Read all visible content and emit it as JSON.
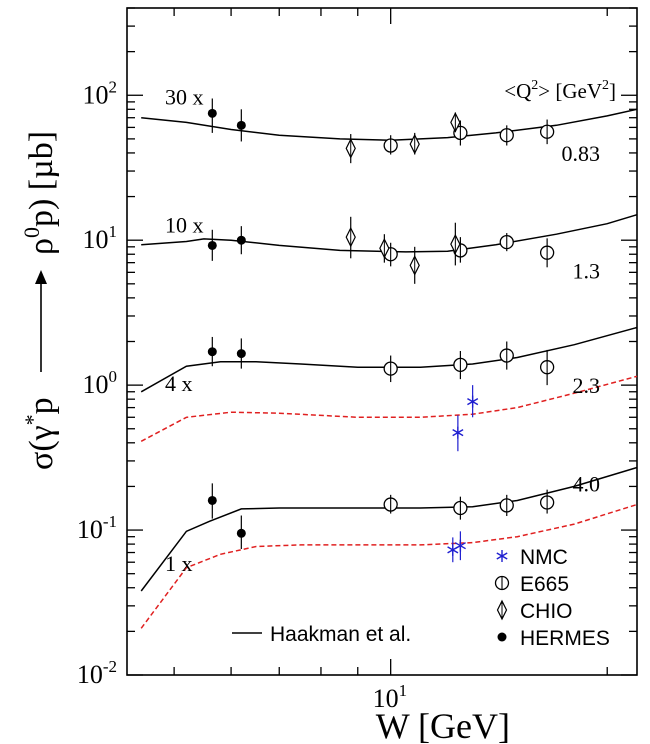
{
  "chart_data": {
    "type": "scatter",
    "title": "",
    "xlabel": "W [GeV]",
    "ylabel": {
      "prefix": "σ(γ",
      "star": "*",
      "mid": "p",
      "arrow": "→",
      "rho": "ρ",
      "sup": "0",
      "suffix": "p) [µb]"
    },
    "x_scale": "log",
    "y_scale": "log",
    "xlim": [
      4.3,
      22
    ],
    "ylim": [
      0.01,
      400
    ],
    "x_ticks": [
      {
        "value": 10,
        "base": "10",
        "exp": "1"
      }
    ],
    "y_ticks": [
      {
        "value": 0.01,
        "base": "10",
        "exp": "-2"
      },
      {
        "value": 0.1,
        "base": "10",
        "exp": "-1"
      },
      {
        "value": 1,
        "base": "10",
        "exp": "0"
      },
      {
        "value": 10,
        "base": "10",
        "exp": "1"
      },
      {
        "value": 100,
        "base": "10",
        "exp": "2"
      }
    ],
    "q2_header": {
      "open": "<Q",
      "sup": "2",
      "close": "> [GeV",
      "sup2": "2",
      "end": "]"
    },
    "panels": [
      {
        "scale_label": "30 x",
        "q2": "0.83",
        "scale_y": 100,
        "q2_y": 40
      },
      {
        "scale_label": "10 x",
        "q2": "1.3",
        "scale_y": 13,
        "q2_y": 6.2
      },
      {
        "scale_label": "4 x",
        "q2": "2.3",
        "scale_y": 1.05,
        "q2_y": 1.0
      },
      {
        "scale_label": "1 x",
        "q2": "4.0",
        "scale_y": 0.06,
        "q2_y": 0.21
      }
    ],
    "series": [
      {
        "name": "HERMES",
        "marker": "filled-circle",
        "points": [
          {
            "x": 5.65,
            "y": 75,
            "lo": 55,
            "hi": 95
          },
          {
            "x": 6.2,
            "y": 62,
            "lo": 48,
            "hi": 80
          },
          {
            "x": 5.65,
            "y": 9.2,
            "lo": 7.2,
            "hi": 11.8
          },
          {
            "x": 6.2,
            "y": 10,
            "lo": 8,
            "hi": 12.5
          },
          {
            "x": 5.65,
            "y": 1.7,
            "lo": 1.35,
            "hi": 2.15
          },
          {
            "x": 6.2,
            "y": 1.65,
            "lo": 1.3,
            "hi": 2.1
          },
          {
            "x": 5.65,
            "y": 0.16,
            "lo": 0.12,
            "hi": 0.21
          },
          {
            "x": 6.2,
            "y": 0.095,
            "lo": 0.074,
            "hi": 0.126
          }
        ]
      },
      {
        "name": "E665",
        "marker": "open-circle",
        "points": [
          {
            "x": 10.0,
            "y": 45,
            "lo": 39,
            "hi": 53
          },
          {
            "x": 12.5,
            "y": 55,
            "lo": 45,
            "hi": 67
          },
          {
            "x": 14.5,
            "y": 53,
            "lo": 45,
            "hi": 62
          },
          {
            "x": 16.5,
            "y": 56,
            "lo": 46,
            "hi": 68
          },
          {
            "x": 10.0,
            "y": 8.0,
            "lo": 6.6,
            "hi": 9.6
          },
          {
            "x": 12.5,
            "y": 8.5,
            "lo": 7.0,
            "hi": 10.5
          },
          {
            "x": 14.5,
            "y": 9.7,
            "lo": 8.4,
            "hi": 11.2
          },
          {
            "x": 16.5,
            "y": 8.2,
            "lo": 6.5,
            "hi": 10.3
          },
          {
            "x": 10.0,
            "y": 1.3,
            "lo": 1.05,
            "hi": 1.6
          },
          {
            "x": 12.5,
            "y": 1.38,
            "lo": 1.1,
            "hi": 1.72
          },
          {
            "x": 14.5,
            "y": 1.6,
            "lo": 1.28,
            "hi": 2.0
          },
          {
            "x": 16.5,
            "y": 1.33,
            "lo": 1.0,
            "hi": 1.75
          },
          {
            "x": 10.0,
            "y": 0.15,
            "lo": 0.13,
            "hi": 0.175
          },
          {
            "x": 12.5,
            "y": 0.142,
            "lo": 0.118,
            "hi": 0.17
          },
          {
            "x": 14.5,
            "y": 0.148,
            "lo": 0.125,
            "hi": 0.175
          },
          {
            "x": 16.5,
            "y": 0.155,
            "lo": 0.13,
            "hi": 0.19
          }
        ]
      },
      {
        "name": "CHIO",
        "marker": "open-diamond",
        "points": [
          {
            "x": 8.8,
            "y": 43,
            "lo": 34,
            "hi": 54
          },
          {
            "x": 10.8,
            "y": 46,
            "lo": 39,
            "hi": 55
          },
          {
            "x": 12.3,
            "y": 65,
            "lo": 56,
            "hi": 76
          },
          {
            "x": 8.8,
            "y": 10.5,
            "lo": 7.5,
            "hi": 14.5
          },
          {
            "x": 9.8,
            "y": 8.8,
            "lo": 7.0,
            "hi": 11.0
          },
          {
            "x": 10.8,
            "y": 6.7,
            "lo": 5.0,
            "hi": 9.0
          },
          {
            "x": 12.3,
            "y": 9.4,
            "lo": 6.7,
            "hi": 13.2
          }
        ]
      },
      {
        "name": "NMC",
        "marker": "asterisk",
        "color": "#1f1fd0",
        "points": [
          {
            "x": 12.4,
            "y": 0.47,
            "lo": 0.35,
            "hi": 0.62
          },
          {
            "x": 13.0,
            "y": 0.77,
            "lo": 0.6,
            "hi": 1.0
          },
          {
            "x": 12.2,
            "y": 0.073,
            "lo": 0.06,
            "hi": 0.089
          },
          {
            "x": 12.5,
            "y": 0.078,
            "lo": 0.062,
            "hi": 0.098
          }
        ]
      }
    ],
    "curves": [
      {
        "style": "solid",
        "color": "#000000",
        "points": [
          [
            4.5,
            70
          ],
          [
            5.2,
            65
          ],
          [
            6.0,
            58
          ],
          [
            7.0,
            53
          ],
          [
            8.5,
            50
          ],
          [
            10,
            49
          ],
          [
            12,
            51
          ],
          [
            14,
            55
          ],
          [
            17,
            62
          ],
          [
            20,
            72
          ],
          [
            22,
            80
          ]
        ]
      },
      {
        "style": "solid",
        "color": "#000000",
        "points": [
          [
            4.5,
            9.3
          ],
          [
            5.2,
            9.8
          ],
          [
            5.5,
            10.2
          ],
          [
            6.0,
            10
          ],
          [
            7.0,
            9.2
          ],
          [
            8.5,
            8.5
          ],
          [
            10.5,
            8.3
          ],
          [
            12,
            8.4
          ],
          [
            14,
            9.3
          ],
          [
            17,
            11
          ],
          [
            20,
            13
          ],
          [
            22,
            15
          ]
        ]
      },
      {
        "style": "solid",
        "color": "#000000",
        "points": [
          [
            4.5,
            0.9
          ],
          [
            5.2,
            1.35
          ],
          [
            5.8,
            1.45
          ],
          [
            6.5,
            1.45
          ],
          [
            7.5,
            1.4
          ],
          [
            9,
            1.33
          ],
          [
            11,
            1.33
          ],
          [
            13,
            1.4
          ],
          [
            15,
            1.55
          ],
          [
            18,
            1.9
          ],
          [
            22,
            2.5
          ]
        ]
      },
      {
        "style": "dashed",
        "color": "#e02020",
        "points": [
          [
            4.5,
            0.41
          ],
          [
            5.2,
            0.6
          ],
          [
            6.0,
            0.65
          ],
          [
            7.0,
            0.64
          ],
          [
            9,
            0.6
          ],
          [
            11,
            0.6
          ],
          [
            13,
            0.63
          ],
          [
            15,
            0.7
          ],
          [
            18,
            0.88
          ],
          [
            22,
            1.15
          ]
        ]
      },
      {
        "style": "solid",
        "color": "#000000",
        "points": [
          [
            4.5,
            0.038
          ],
          [
            5.2,
            0.098
          ],
          [
            5.6,
            0.115
          ],
          [
            6.2,
            0.14
          ],
          [
            7.0,
            0.142
          ],
          [
            9,
            0.142
          ],
          [
            11,
            0.142
          ],
          [
            13,
            0.145
          ],
          [
            15,
            0.16
          ],
          [
            18,
            0.2
          ],
          [
            22,
            0.27
          ]
        ]
      },
      {
        "style": "dashed",
        "color": "#e02020",
        "points": [
          [
            4.5,
            0.021
          ],
          [
            5.2,
            0.055
          ],
          [
            5.8,
            0.068
          ],
          [
            6.5,
            0.077
          ],
          [
            7.5,
            0.079
          ],
          [
            9,
            0.079
          ],
          [
            11,
            0.079
          ],
          [
            13,
            0.082
          ],
          [
            15,
            0.09
          ],
          [
            18,
            0.11
          ],
          [
            22,
            0.15
          ]
        ]
      }
    ],
    "legend": {
      "placement": "bottom-right",
      "entries": [
        {
          "label": "NMC",
          "marker": "asterisk",
          "color": "#1f1fd0"
        },
        {
          "label": "E665",
          "marker": "open-circle"
        },
        {
          "label": "CHIO",
          "marker": "open-diamond"
        },
        {
          "label": "HERMES",
          "marker": "filled-circle"
        }
      ],
      "line_entry": {
        "label": "Haakman et al.",
        "style": "solid"
      }
    }
  }
}
